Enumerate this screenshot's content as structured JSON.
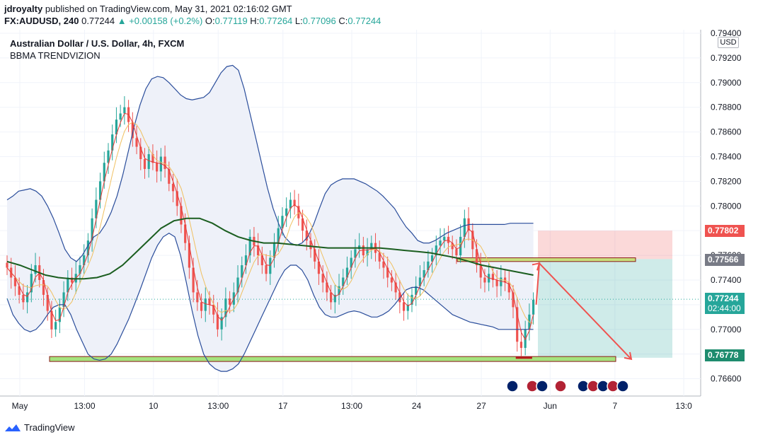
{
  "header": {
    "user": "jdroyalty",
    "published_text": "published on TradingView.com, May 31, 2021 02:16:02 GMT",
    "symbol": "FX:AUDUSD, 240",
    "last": "0.77244",
    "change": "▲ +0.00158 (+0.2%)",
    "o_label": "O:",
    "o_value": "0.77119",
    "h_label": "H:",
    "h_value": "0.77264",
    "l_label": "L:",
    "l_value": "0.77096",
    "c_label": "C:",
    "c_value": "0.77244"
  },
  "legend": {
    "title": "Australian Dollar / U.S. Dollar, 4h, FXCM",
    "indicator": "BBMA TRENDVIZION"
  },
  "currency_label": "USD",
  "price_tags": [
    {
      "label": "0.77802",
      "color": "#ef5350"
    },
    {
      "label": "0.77566",
      "color": "#787b86"
    },
    {
      "label": "0.77244",
      "sub": "02:44:00",
      "color": "#26a69a"
    },
    {
      "label": "0.76778",
      "color": "#1e8c6e"
    }
  ],
  "footer": {
    "brand": "TradingView"
  },
  "chart_data": {
    "type": "candlestick",
    "ylim": [
      0.765,
      0.794
    ],
    "y_ticks": [
      "0.79400",
      "0.79200",
      "0.79000",
      "0.78800",
      "0.78600",
      "0.78400",
      "0.78200",
      "0.78000",
      "0.77800",
      "0.77600",
      "0.77400",
      "0.77200",
      "0.77000",
      "0.76800",
      "0.76600"
    ],
    "x_ticks": [
      {
        "label": "May",
        "pos": 0
      },
      {
        "label": "13:00",
        "pos": 16
      },
      {
        "label": "10",
        "pos": 33
      },
      {
        "label": "13:00",
        "pos": 49
      },
      {
        "label": "17",
        "pos": 65
      },
      {
        "label": "13:00",
        "pos": 82
      },
      {
        "label": "24",
        "pos": 98
      },
      {
        "label": "27",
        "pos": 114
      },
      {
        "label": "Jun",
        "pos": 131
      },
      {
        "label": "7",
        "pos": 147
      },
      {
        "label": "13:0",
        "pos": 164
      }
    ],
    "close": [
      0.775,
      0.7742,
      0.7735,
      0.7728,
      0.7722,
      0.773,
      0.7745,
      0.7752,
      0.774,
      0.7728,
      0.7715,
      0.77,
      0.7706,
      0.7718,
      0.773,
      0.7742,
      0.7738,
      0.7745,
      0.7752,
      0.776,
      0.7772,
      0.779,
      0.7805,
      0.782,
      0.7835,
      0.7845,
      0.7858,
      0.787,
      0.7875,
      0.788,
      0.7868,
      0.7855,
      0.7848,
      0.7838,
      0.783,
      0.7842,
      0.7835,
      0.7828,
      0.784,
      0.783,
      0.7818,
      0.7812,
      0.78,
      0.7785,
      0.777,
      0.775,
      0.773,
      0.7722,
      0.7715,
      0.7725,
      0.772,
      0.7712,
      0.77,
      0.771,
      0.7725,
      0.772,
      0.773,
      0.7742,
      0.7752,
      0.776,
      0.7775,
      0.7768,
      0.776,
      0.7752,
      0.7745,
      0.7758,
      0.777,
      0.7782,
      0.7792,
      0.7798,
      0.7805,
      0.78,
      0.779,
      0.778,
      0.7772,
      0.7765,
      0.7755,
      0.7745,
      0.7738,
      0.773,
      0.7722,
      0.7728,
      0.7735,
      0.7742,
      0.775,
      0.7758,
      0.7765,
      0.7768,
      0.776,
      0.7765,
      0.777,
      0.7762,
      0.7755,
      0.775,
      0.7742,
      0.7738,
      0.773,
      0.7722,
      0.7715,
      0.772,
      0.7728,
      0.7735,
      0.7742,
      0.7748,
      0.7755,
      0.776,
      0.7768,
      0.7772,
      0.7775,
      0.777,
      0.7765,
      0.776,
      0.7775,
      0.779,
      0.778,
      0.7765,
      0.7752,
      0.7742,
      0.7738,
      0.7745,
      0.774,
      0.7735,
      0.7742,
      0.7738,
      0.773,
      0.7718,
      0.769,
      0.7685,
      0.77,
      0.7712,
      0.7724
    ],
    "bbma": {
      "upper": [
        0.7805,
        0.7808,
        0.7812,
        0.7813,
        0.7814,
        0.7812,
        0.7808,
        0.78,
        0.779,
        0.7778,
        0.7765,
        0.7758,
        0.7755,
        0.776,
        0.7768,
        0.7775,
        0.7778,
        0.7785,
        0.7795,
        0.7808,
        0.7825,
        0.7845,
        0.7865,
        0.7882,
        0.7895,
        0.7903,
        0.7905,
        0.7904,
        0.79,
        0.7895,
        0.789,
        0.7887,
        0.7886,
        0.7887,
        0.7888,
        0.7892,
        0.79,
        0.7908,
        0.7913,
        0.7914,
        0.791,
        0.7895,
        0.7875,
        0.7855,
        0.7835,
        0.7815,
        0.7798,
        0.7785,
        0.7775,
        0.777,
        0.7768,
        0.777,
        0.7775,
        0.7785,
        0.7798,
        0.781,
        0.7817,
        0.782,
        0.7822,
        0.7822,
        0.7822,
        0.782,
        0.7818,
        0.7815,
        0.7812,
        0.7808,
        0.7803,
        0.7798,
        0.779,
        0.7783,
        0.7778,
        0.7772,
        0.777,
        0.777,
        0.7772,
        0.7775,
        0.7778,
        0.778,
        0.7782,
        0.7784,
        0.7785,
        0.7785,
        0.7785,
        0.7785,
        0.7785,
        0.7785,
        0.7785,
        0.7786,
        0.7786,
        0.7786,
        0.7786,
        0.7786
      ],
      "lower": [
        0.7725,
        0.7712,
        0.7705,
        0.77,
        0.7698,
        0.77,
        0.7705,
        0.7712,
        0.7718,
        0.772,
        0.772,
        0.7712,
        0.77,
        0.769,
        0.768,
        0.7676,
        0.7675,
        0.7676,
        0.768,
        0.7688,
        0.7698,
        0.7708,
        0.772,
        0.7732,
        0.7745,
        0.7758,
        0.7768,
        0.7775,
        0.7778,
        0.7775,
        0.776,
        0.7738,
        0.7715,
        0.7695,
        0.768,
        0.7672,
        0.7668,
        0.7666,
        0.7666,
        0.7668,
        0.7672,
        0.768,
        0.769,
        0.77,
        0.771,
        0.772,
        0.773,
        0.774,
        0.7748,
        0.7752,
        0.7752,
        0.7748,
        0.774,
        0.7728,
        0.7718,
        0.7712,
        0.771,
        0.771,
        0.7712,
        0.7714,
        0.7715,
        0.7714,
        0.7712,
        0.771,
        0.771,
        0.7712,
        0.7715,
        0.772,
        0.7726,
        0.7732,
        0.7734,
        0.7734,
        0.7732,
        0.7728,
        0.7724,
        0.772,
        0.7716,
        0.7712,
        0.771,
        0.7708,
        0.7706,
        0.7705,
        0.7704,
        0.7703,
        0.7702,
        0.77,
        0.77,
        0.77,
        0.77,
        0.77,
        0.77,
        0.77
      ]
    },
    "ema50": [
      0.7755,
      0.7752,
      0.7748,
      0.7744,
      0.7742,
      0.7741,
      0.7741,
      0.7742,
      0.7745,
      0.7752,
      0.7762,
      0.7772,
      0.7782,
      0.7788,
      0.779,
      0.779,
      0.7786,
      0.778,
      0.7775,
      0.7772,
      0.777,
      0.777,
      0.7769,
      0.7768,
      0.7767,
      0.7766,
      0.7766,
      0.7766,
      0.7766,
      0.7766,
      0.7765,
      0.7764,
      0.7763,
      0.7762,
      0.776,
      0.7758,
      0.7755,
      0.7752,
      0.775,
      0.7748,
      0.7746,
      0.7744
    ],
    "annotations": {
      "support_zone": [
        0.7674,
        0.7678
      ],
      "resistance_zone": [
        0.7755,
        0.7758
      ],
      "sell_entry": 0.7757,
      "stop_loss": 0.778,
      "take_profit": 0.7677
    }
  }
}
